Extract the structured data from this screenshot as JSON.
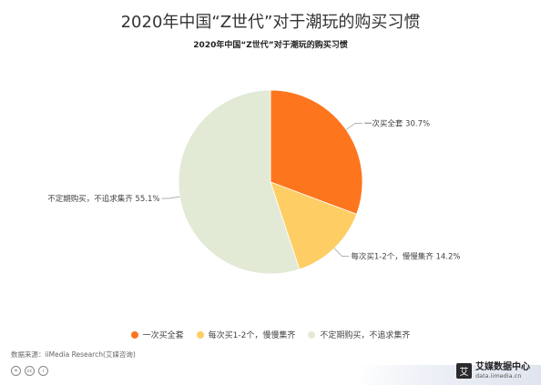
{
  "header": {
    "title": "2020年中国“Z世代”对于潮玩的购买习惯",
    "subtitle": "2020年中国“Z世代”对于潮玩的购买习惯"
  },
  "chart_data": {
    "type": "pie",
    "title": "2020年中国“Z世代”对于潮玩的购买习惯",
    "categories": [
      "一次买全套",
      "每次买1-2个，慢慢集齐",
      "不定期购买，不追求集齐"
    ],
    "values": [
      30.7,
      14.2,
      55.1
    ],
    "unit": "%",
    "colors": [
      "#fd761e",
      "#fecd63",
      "#e2ead6"
    ],
    "labels": [
      "一次买全套 30.7%",
      "每次买1-2个，慢慢集齐 14.2%",
      "不定期购买，不追求集齐 55.1%"
    ],
    "legend_placement": "bottom",
    "start": "12 o'clock",
    "direction": "clockwise"
  },
  "legend": {
    "items": [
      "一次买全套",
      "每次买1-2个，慢慢集齐",
      "不定期购买，不追求集齐"
    ]
  },
  "footer": {
    "source": "数据来源：iiMedia Research(艾媒咨询)",
    "brand_mark": "艾",
    "brand_name": "艾媒数据中心",
    "brand_url": "data.iimedia.cn",
    "cc_icons": [
      "=",
      "cc",
      "i"
    ]
  }
}
